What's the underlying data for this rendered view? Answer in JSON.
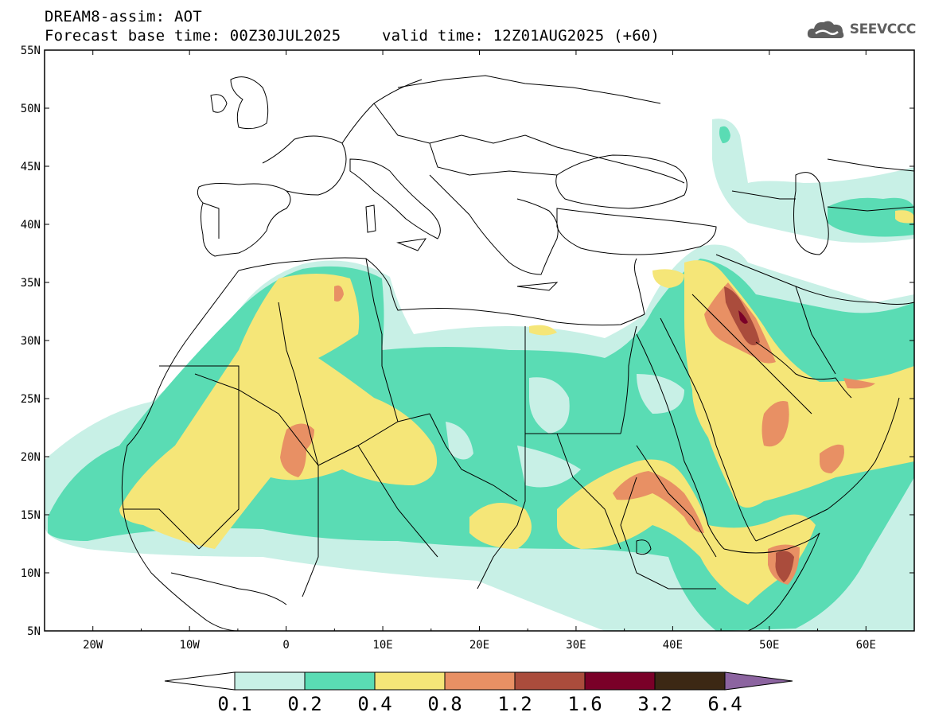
{
  "header": {
    "title_line1": "DREAM8-assim: AOT",
    "title_line2": "Forecast base time: 00Z30JUL2025",
    "valid_time": "valid time: 12Z01AUG2025 (+60)"
  },
  "logo": {
    "text": "SEEVCCC",
    "icon": "cloud-logo-icon"
  },
  "map": {
    "lon_range": [
      -25,
      65
    ],
    "lat_range": [
      5,
      55
    ],
    "lat_ticks": [
      "55N",
      "50N",
      "45N",
      "40N",
      "35N",
      "30N",
      "25N",
      "20N",
      "15N",
      "10N",
      "5N"
    ],
    "lon_ticks": [
      "20W",
      "10W",
      "0",
      "10E",
      "20E",
      "30E",
      "40E",
      "50E",
      "60E"
    ]
  },
  "colorbar": {
    "labels": [
      "0.1",
      "0.2",
      "0.4",
      "0.8",
      "1.2",
      "1.6",
      "3.2",
      "6.4"
    ],
    "colors": [
      "#c8f0e6",
      "#5adcb4",
      "#f5e678",
      "#e89064",
      "#aa4c3c",
      "#7a0028",
      "#3c2814"
    ],
    "overflow_color": "#8c64a0",
    "underflow_color": "#ffffff"
  }
}
